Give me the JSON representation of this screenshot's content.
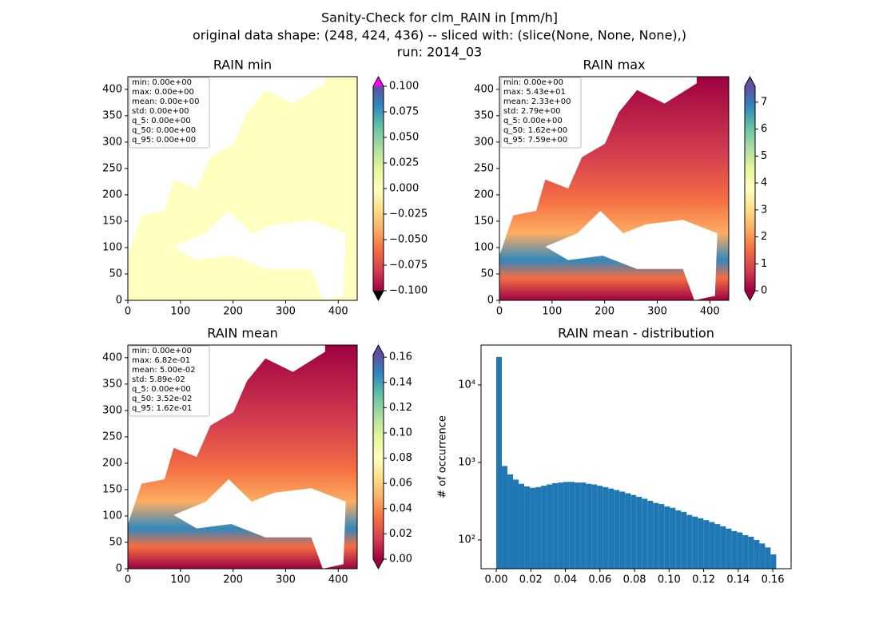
{
  "figure": {
    "title_lines": [
      "Sanity-Check for clm_RAIN in [mm/h]",
      "original data shape: (248, 424, 436) -- sliced with: (slice(None, None, None),)",
      "run: 2014_03"
    ]
  },
  "chart_data": [
    {
      "type": "image",
      "title": "RAIN min",
      "xlim": [
        0,
        436
      ],
      "ylim": [
        0,
        424
      ],
      "xticks": [
        0,
        100,
        200,
        300,
        400
      ],
      "yticks": [
        0,
        50,
        100,
        150,
        200,
        250,
        300,
        350,
        400
      ],
      "stats": [
        "min: 0.00e+00",
        "max: 0.00e+00",
        "mean: 0.00e+00",
        "std: 0.00e+00",
        "q_5: 0.00e+00",
        "q_50: 0.00e+00",
        "q_95: 0.00e+00"
      ],
      "colorbar": {
        "clim": [
          -0.1,
          0.1
        ],
        "ticks": [
          {
            "value": -0.1,
            "label": "−0.100"
          },
          {
            "value": -0.075,
            "label": "−0.075"
          },
          {
            "value": -0.05,
            "label": "−0.050"
          },
          {
            "value": -0.025,
            "label": "−0.025"
          },
          {
            "value": 0,
            "label": "0.000"
          },
          {
            "value": 0.025,
            "label": "0.025"
          },
          {
            "value": 0.05,
            "label": "0.050"
          },
          {
            "value": 0.075,
            "label": "0.075"
          },
          {
            "value": 0.1,
            "label": "0.100"
          }
        ],
        "colormap": [
          "#9e0142",
          "#d53e4f",
          "#f46d43",
          "#fdae61",
          "#fee08b",
          "#ffffbf",
          "#e6f598",
          "#abdda4",
          "#66c2a5",
          "#3288bd",
          "#5e4fa2"
        ],
        "extend_colors": [
          "#000000",
          "#ff00ff"
        ]
      }
    },
    {
      "type": "image",
      "title": "RAIN max",
      "xlim": [
        0,
        436
      ],
      "ylim": [
        0,
        424
      ],
      "xticks": [
        0,
        100,
        200,
        300,
        400
      ],
      "yticks": [
        0,
        50,
        100,
        150,
        200,
        250,
        300,
        350,
        400
      ],
      "stats": [
        "min: 0.00e+00",
        "max: 5.43e+01",
        "mean: 2.33e+00",
        "std: 2.79e+00",
        "q_5: 0.00e+00",
        "q_50: 1.62e+00",
        "q_95: 7.59e+00"
      ],
      "colorbar": {
        "clim": [
          0,
          7.59
        ],
        "ticks": [
          0,
          1,
          2,
          3,
          4,
          5,
          6,
          7
        ],
        "colormap": [
          "#9e0142",
          "#d53e4f",
          "#f46d43",
          "#fdae61",
          "#fee08b",
          "#ffffbf",
          "#e6f598",
          "#abdda4",
          "#66c2a5",
          "#3288bd",
          "#5e4fa2"
        ],
        "extend_colors": [
          "#9e0142",
          "#5e4fa2"
        ]
      }
    },
    {
      "type": "image",
      "title": "RAIN mean",
      "xlim": [
        0,
        436
      ],
      "ylim": [
        0,
        424
      ],
      "xticks": [
        0,
        100,
        200,
        300,
        400
      ],
      "yticks": [
        0,
        50,
        100,
        150,
        200,
        250,
        300,
        350,
        400
      ],
      "stats": [
        "min: 0.00e+00",
        "max: 6.82e-01",
        "mean: 5.00e-02",
        "std: 5.89e-02",
        "q_5: 0.00e+00",
        "q_50: 3.52e-02",
        "q_95: 1.62e-01"
      ],
      "colorbar": {
        "clim": [
          0,
          0.162
        ],
        "ticks": [
          {
            "value": 0,
            "label": "0.00"
          },
          {
            "value": 0.02,
            "label": "0.02"
          },
          {
            "value": 0.04,
            "label": "0.04"
          },
          {
            "value": 0.06,
            "label": "0.06"
          },
          {
            "value": 0.08,
            "label": "0.08"
          },
          {
            "value": 0.1,
            "label": "0.10"
          },
          {
            "value": 0.12,
            "label": "0.12"
          },
          {
            "value": 0.14,
            "label": "0.14"
          },
          {
            "value": 0.16,
            "label": "0.16"
          }
        ],
        "colormap": [
          "#9e0142",
          "#d53e4f",
          "#f46d43",
          "#fdae61",
          "#fee08b",
          "#ffffbf",
          "#e6f598",
          "#abdda4",
          "#66c2a5",
          "#3288bd",
          "#5e4fa2"
        ],
        "extend_colors": [
          "#9e0142",
          "#5e4fa2"
        ]
      }
    },
    {
      "type": "histogram",
      "title": "RAIN mean - distribution",
      "ylabel": "# of occurrence",
      "color": "#1f77b4",
      "log_y": true,
      "xlim": [
        -0.0088,
        0.1706
      ],
      "ylim": [
        42.5,
        32700
      ],
      "xticks": [
        {
          "value": 0,
          "label": "0.00"
        },
        {
          "value": 0.02,
          "label": "0.02"
        },
        {
          "value": 0.04,
          "label": "0.04"
        },
        {
          "value": 0.06,
          "label": "0.06"
        },
        {
          "value": 0.08,
          "label": "0.08"
        },
        {
          "value": 0.1,
          "label": "0.10"
        },
        {
          "value": 0.12,
          "label": "0.12"
        },
        {
          "value": 0.14,
          "label": "0.14"
        },
        {
          "value": 0.16,
          "label": "0.16"
        }
      ],
      "yticks": [
        {
          "value": 100,
          "label": "10²"
        },
        {
          "value": 1000,
          "label": "10³"
        },
        {
          "value": 10000,
          "label": "10⁴"
        }
      ],
      "bins": [
        0,
        0.00324,
        0.00648,
        0.00972,
        0.01296,
        0.0162,
        0.01944,
        0.02268,
        0.02592,
        0.02916,
        0.0324,
        0.03564,
        0.03888,
        0.04212,
        0.04536,
        0.0486,
        0.05184,
        0.05508,
        0.05832,
        0.06156,
        0.0648,
        0.06804,
        0.07128,
        0.07452,
        0.07776,
        0.081,
        0.08424,
        0.08748,
        0.09072,
        0.09396,
        0.0972,
        0.10044,
        0.10368,
        0.10692,
        0.11016,
        0.1134,
        0.11664,
        0.11988,
        0.12312,
        0.12636,
        0.1296,
        0.13284,
        0.13608,
        0.13932,
        0.14256,
        0.1458,
        0.14904,
        0.15228,
        0.15552,
        0.15876,
        0.162
      ],
      "values": [
        23000,
        900,
        700,
        600,
        530,
        490,
        470,
        480,
        500,
        520,
        540,
        550,
        560,
        560,
        550,
        550,
        530,
        520,
        500,
        480,
        460,
        440,
        420,
        400,
        380,
        360,
        340,
        320,
        300,
        290,
        270,
        260,
        240,
        230,
        210,
        200,
        190,
        180,
        170,
        160,
        150,
        140,
        130,
        125,
        115,
        110,
        100,
        90,
        80,
        65
      ]
    }
  ]
}
